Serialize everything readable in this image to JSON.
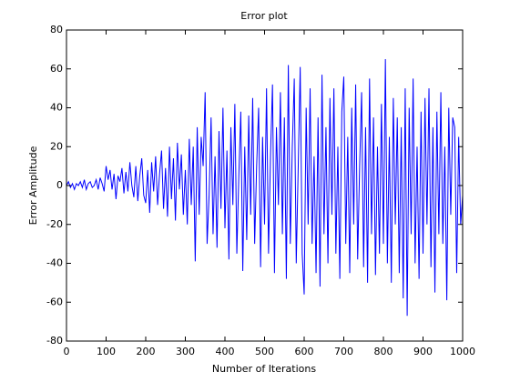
{
  "chart_data": {
    "type": "line",
    "title": "Error plot",
    "xlabel": "Number of Iterations",
    "ylabel": "Error Amplitude",
    "color": "#0000ff",
    "x": [
      0,
      5,
      10,
      15,
      20,
      25,
      30,
      35,
      40,
      45,
      50,
      55,
      60,
      65,
      70,
      75,
      80,
      85,
      90,
      95,
      100,
      105,
      110,
      115,
      120,
      125,
      130,
      135,
      140,
      145,
      150,
      155,
      160,
      165,
      170,
      175,
      180,
      185,
      190,
      195,
      200,
      205,
      210,
      215,
      220,
      225,
      230,
      235,
      240,
      245,
      250,
      255,
      260,
      265,
      270,
      275,
      280,
      285,
      290,
      295,
      300,
      305,
      310,
      315,
      320,
      325,
      330,
      335,
      340,
      345,
      350,
      355,
      360,
      365,
      370,
      375,
      380,
      385,
      390,
      395,
      400,
      405,
      410,
      415,
      420,
      425,
      430,
      435,
      440,
      445,
      450,
      455,
      460,
      465,
      470,
      475,
      480,
      485,
      490,
      495,
      500,
      505,
      510,
      515,
      520,
      525,
      530,
      535,
      540,
      545,
      550,
      555,
      560,
      565,
      570,
      575,
      580,
      585,
      590,
      595,
      600,
      605,
      610,
      615,
      620,
      625,
      630,
      635,
      640,
      645,
      650,
      655,
      660,
      665,
      670,
      675,
      680,
      685,
      690,
      695,
      700,
      705,
      710,
      715,
      720,
      725,
      730,
      735,
      740,
      745,
      750,
      755,
      760,
      765,
      770,
      775,
      780,
      785,
      790,
      795,
      800,
      805,
      810,
      815,
      820,
      825,
      830,
      835,
      840,
      845,
      850,
      855,
      860,
      865,
      870,
      875,
      880,
      885,
      890,
      895,
      900,
      905,
      910,
      915,
      920,
      925,
      930,
      935,
      940,
      945,
      950,
      955,
      960,
      965,
      970,
      975,
      980,
      985,
      990,
      995,
      1000
    ],
    "values": [
      0,
      2,
      -1,
      1,
      -2,
      1,
      0,
      2,
      -1,
      3,
      -2,
      1,
      2,
      -1,
      0,
      3,
      -2,
      4,
      1,
      -3,
      10,
      3,
      8,
      -2,
      6,
      -7,
      5,
      2,
      9,
      -4,
      7,
      -3,
      12,
      0,
      -6,
      10,
      -8,
      5,
      14,
      -5,
      -9,
      8,
      -14,
      12,
      -3,
      15,
      -10,
      6,
      18,
      -12,
      9,
      -16,
      20,
      -7,
      14,
      -18,
      22,
      -2,
      16,
      -15,
      8,
      -20,
      24,
      -10,
      20,
      -39,
      30,
      -15,
      25,
      10,
      48,
      -30,
      -5,
      35,
      -25,
      15,
      -32,
      28,
      -12,
      40,
      -22,
      18,
      -38,
      30,
      -10,
      42,
      -35,
      5,
      38,
      -44,
      20,
      -28,
      36,
      -15,
      45,
      -30,
      10,
      40,
      -42,
      25,
      -20,
      50,
      -35,
      15,
      52,
      -45,
      30,
      -10,
      48,
      -25,
      35,
      -48,
      62,
      -30,
      20,
      55,
      -40,
      10,
      61,
      -35,
      -56,
      40,
      -20,
      50,
      -30,
      15,
      -45,
      35,
      -52,
      57,
      -25,
      30,
      -40,
      45,
      -15,
      50,
      -35,
      20,
      -48,
      38,
      56,
      -30,
      25,
      -45,
      40,
      -20,
      52,
      -38,
      10,
      48,
      -42,
      30,
      -50,
      55,
      -25,
      35,
      -46,
      20,
      -35,
      42,
      -30,
      65,
      -40,
      25,
      -50,
      45,
      -20,
      35,
      -45,
      30,
      -58,
      50,
      -67,
      40,
      -25,
      55,
      -40,
      20,
      -48,
      38,
      -35,
      45,
      -20,
      50,
      -42,
      30,
      -55,
      38,
      -25,
      48,
      -30,
      20,
      -59,
      40,
      -15,
      35,
      30,
      -45,
      25,
      -20,
      -5
    ],
    "xlim": [
      0,
      1000
    ],
    "xticks": [
      0,
      100,
      200,
      300,
      400,
      500,
      600,
      700,
      800,
      900,
      1000
    ],
    "ylim": [
      -80,
      80
    ],
    "yticks": [
      -80,
      -60,
      -40,
      -20,
      0,
      20,
      40,
      60,
      80
    ]
  }
}
